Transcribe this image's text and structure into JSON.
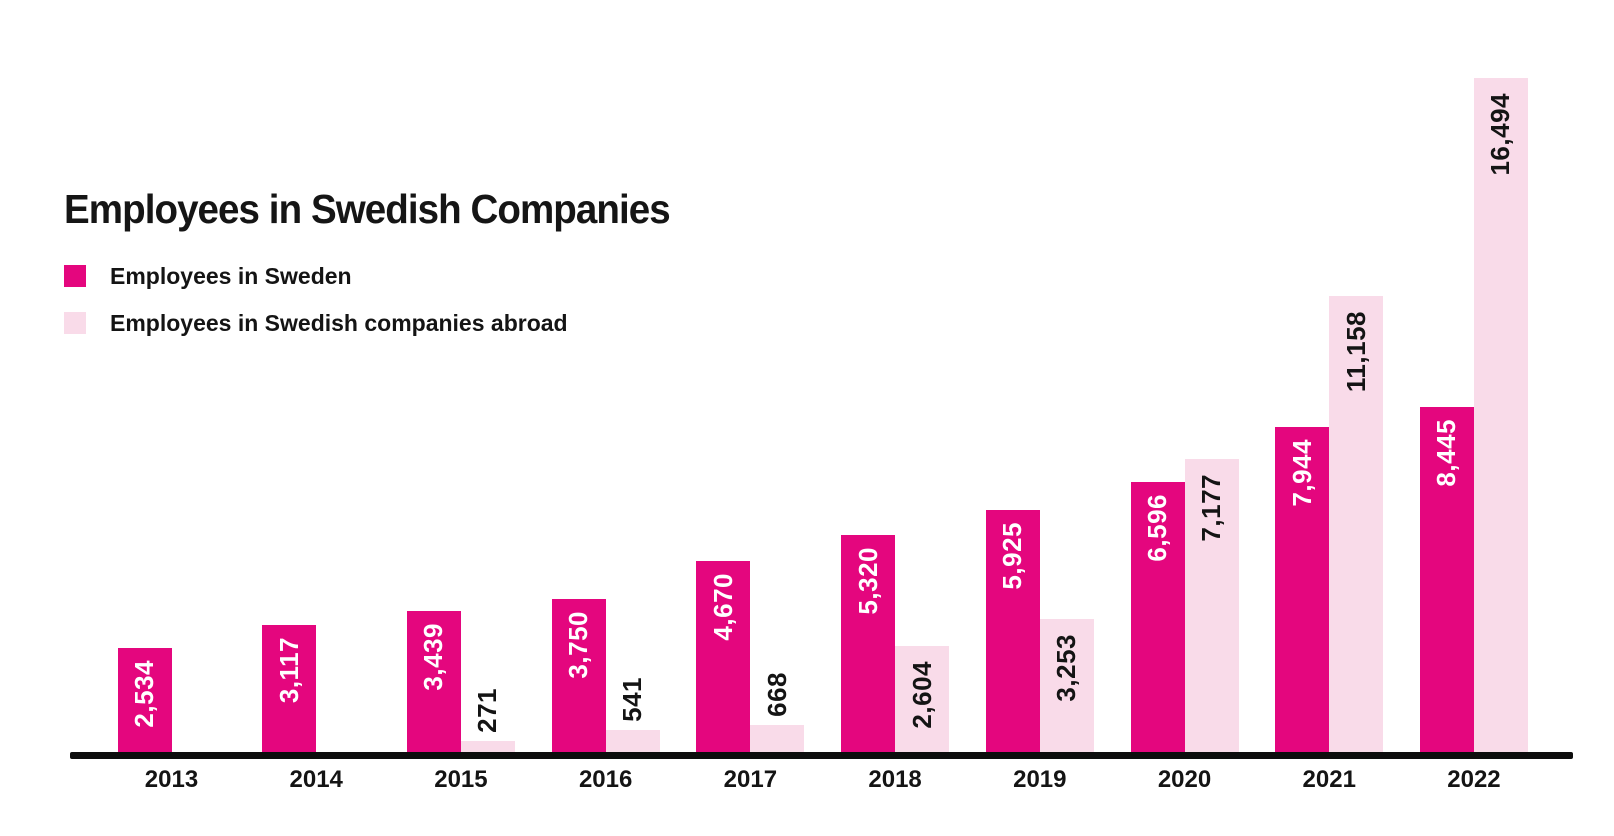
{
  "title": "Employees in Swedish Companies",
  "legend": [
    {
      "label": "Employees in Sweden",
      "color": "#e4067e"
    },
    {
      "label": "Employees in Swedish companies abroad",
      "color": "#f9dbe9"
    }
  ],
  "chart_data": {
    "type": "bar",
    "title": "Employees in Swedish Companies",
    "categories": [
      "2013",
      "2014",
      "2015",
      "2016",
      "2017",
      "2018",
      "2019",
      "2020",
      "2021",
      "2022"
    ],
    "series": [
      {
        "name": "Employees in Sweden",
        "color": "#e4067e",
        "label_color": "#ffffff",
        "values": [
          2534,
          3117,
          3439,
          3750,
          4670,
          5320,
          5925,
          6596,
          7944,
          8445
        ]
      },
      {
        "name": "Employees in Swedish companies abroad",
        "color": "#f9dbe9",
        "label_color": "#141414",
        "values": [
          null,
          null,
          271,
          541,
          668,
          2604,
          3253,
          7177,
          11158,
          16494
        ]
      }
    ],
    "xlabel": "",
    "ylabel": "",
    "ylim": [
      0,
      16494
    ],
    "grid": false,
    "y_axis_shown": false,
    "legend_position": "top-left",
    "value_label_format": "thousands-comma",
    "axis_color": "#0d0d0d"
  }
}
